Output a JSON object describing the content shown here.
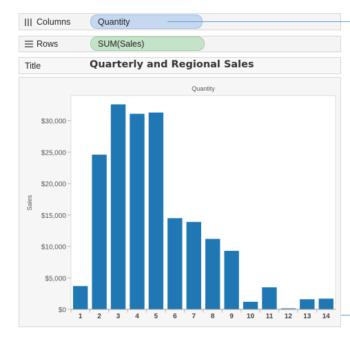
{
  "shelves": {
    "columns": {
      "label": "Columns",
      "pill": "Quantity",
      "icon": "columns-icon"
    },
    "rows": {
      "label": "Rows",
      "pill": "SUM(Sales)",
      "icon": "rows-icon"
    },
    "title": {
      "label": "Title",
      "value": "Quarterly and Regional Sales"
    }
  },
  "colors": {
    "bar": "#1f77b4",
    "pill_blue": "#c6d8f0",
    "pill_green": "#c5e3c8",
    "callout": "#5b9bd5"
  },
  "chart_data": {
    "type": "bar",
    "title": "Quantity",
    "xlabel": "",
    "ylabel": "Sales",
    "categories": [
      "1",
      "2",
      "3",
      "4",
      "5",
      "6",
      "7",
      "8",
      "9",
      "10",
      "11",
      "12",
      "13",
      "14"
    ],
    "values": [
      3700,
      24600,
      32600,
      31100,
      31300,
      14500,
      13900,
      11200,
      9300,
      1200,
      3500,
      150,
      1600,
      1700
    ],
    "ylim": [
      0,
      34000
    ],
    "yticks": [
      0,
      5000,
      10000,
      15000,
      20000,
      25000,
      30000
    ],
    "ytick_labels": [
      "$0",
      "$5,000",
      "$10,000",
      "$15,000",
      "$20,000",
      "$25,000",
      "$30,000"
    ],
    "grid": false
  }
}
